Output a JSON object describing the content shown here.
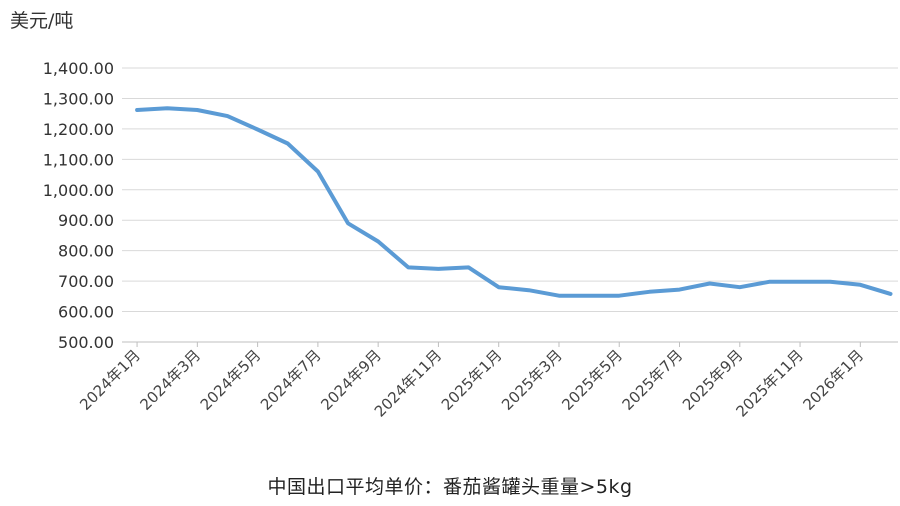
{
  "chart_data": {
    "type": "line",
    "title": "",
    "unit_label": "美元/吨",
    "xlabel": "中国出口平均单价：番茄酱罐头重量>5kg",
    "ylabel": "",
    "ylim": [
      500,
      1400
    ],
    "y_ticks": [
      "500.00",
      "600.00",
      "700.00",
      "800.00",
      "900.00",
      "1,000.00",
      "1,100.00",
      "1,200.00",
      "1,300.00",
      "1,400.00"
    ],
    "x_tick_labels": [
      "2024年1月",
      "2024年3月",
      "2024年5月",
      "2024年7月",
      "2024年9月",
      "2024年11月",
      "2025年1月",
      "2025年3月",
      "2025年5月",
      "2025年7月",
      "2025年9月",
      "2025年11月",
      "2026年1月"
    ],
    "categories": [
      "2024年1月",
      "2024年2月",
      "2024年3月",
      "2024年4月",
      "2024年5月",
      "2024年6月",
      "2024年7月",
      "2024年8月",
      "2024年9月",
      "2024年10月",
      "2024年11月",
      "2024年12月",
      "2025年1月",
      "2025年2月",
      "2025年3月",
      "2025年4月",
      "2025年5月",
      "2025年6月",
      "2025年7月",
      "2025年8月",
      "2025年9月",
      "2025年10月",
      "2025年11月",
      "2025年12月",
      "2026年1月",
      "2026年2月"
    ],
    "grid": true,
    "legend": "none",
    "line_color": "#5b9bd5",
    "grid_color": "#d9d9d9",
    "series": [
      {
        "values": [
          1262,
          1268,
          1262,
          1242,
          1198,
          1152,
          1060,
          890,
          830,
          745,
          740,
          745,
          680,
          670,
          652,
          652,
          652,
          665,
          672,
          692,
          680,
          698,
          698,
          698,
          688,
          658
        ]
      }
    ]
  }
}
